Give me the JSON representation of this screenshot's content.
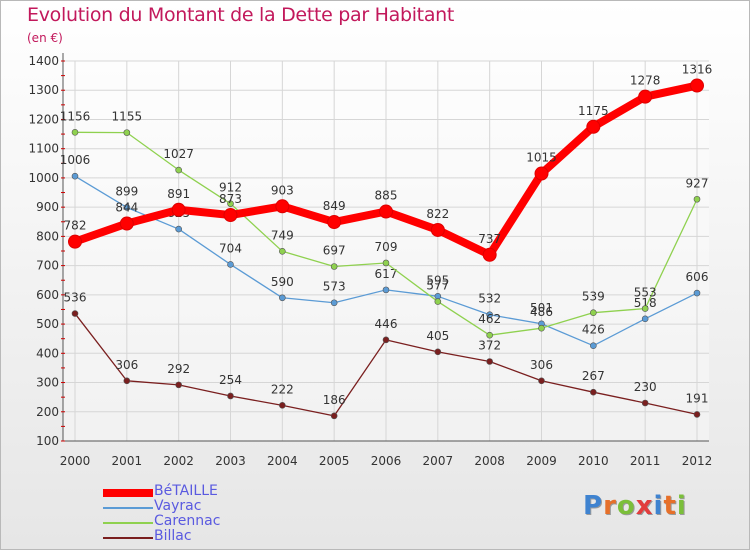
{
  "title": "Evolution du Montant de la Dette par Habitant",
  "subtitle": "(en €)",
  "logo": {
    "text": "Proxiti",
    "letter_colors": [
      "#3f83d0",
      "#e6702a",
      "#7bbf3a",
      "#e23d3d",
      "#3f83d0",
      "#e6702a",
      "#7bbf3a"
    ]
  },
  "chart_data": {
    "type": "line",
    "x": [
      "2000",
      "2001",
      "2002",
      "2003",
      "2004",
      "2005",
      "2006",
      "2007",
      "2008",
      "2009",
      "2010",
      "2011",
      "2012"
    ],
    "ylim": [
      100,
      1400
    ],
    "yticks": [
      100,
      200,
      300,
      400,
      500,
      600,
      700,
      800,
      900,
      1000,
      1100,
      1200,
      1300,
      1400
    ],
    "grid": true,
    "legend_position": "bottom-left",
    "series": [
      {
        "name": "Vayrac",
        "color": "#5b9bd5",
        "values": [
          1006,
          899,
          825,
          704,
          590,
          573,
          617,
          595,
          532,
          501,
          426,
          518,
          606
        ]
      },
      {
        "name": "Carennac",
        "color": "#8fd14f",
        "values": [
          1156,
          1155,
          1027,
          912,
          749,
          697,
          709,
          577,
          462,
          486,
          539,
          553,
          927
        ]
      },
      {
        "name": "Billac",
        "color": "#7a1f1f",
        "values": [
          536,
          306,
          292,
          254,
          222,
          186,
          446,
          405,
          372,
          306,
          267,
          230,
          191
        ]
      },
      {
        "name": "BéTAILLE",
        "color": "#ff0000",
        "values": [
          782,
          844,
          891,
          873,
          903,
          849,
          885,
          822,
          737,
          1015,
          1175,
          1278,
          1316
        ]
      }
    ],
    "legend_order": [
      "BéTAILLE",
      "Vayrac",
      "Carennac",
      "Billac"
    ]
  }
}
